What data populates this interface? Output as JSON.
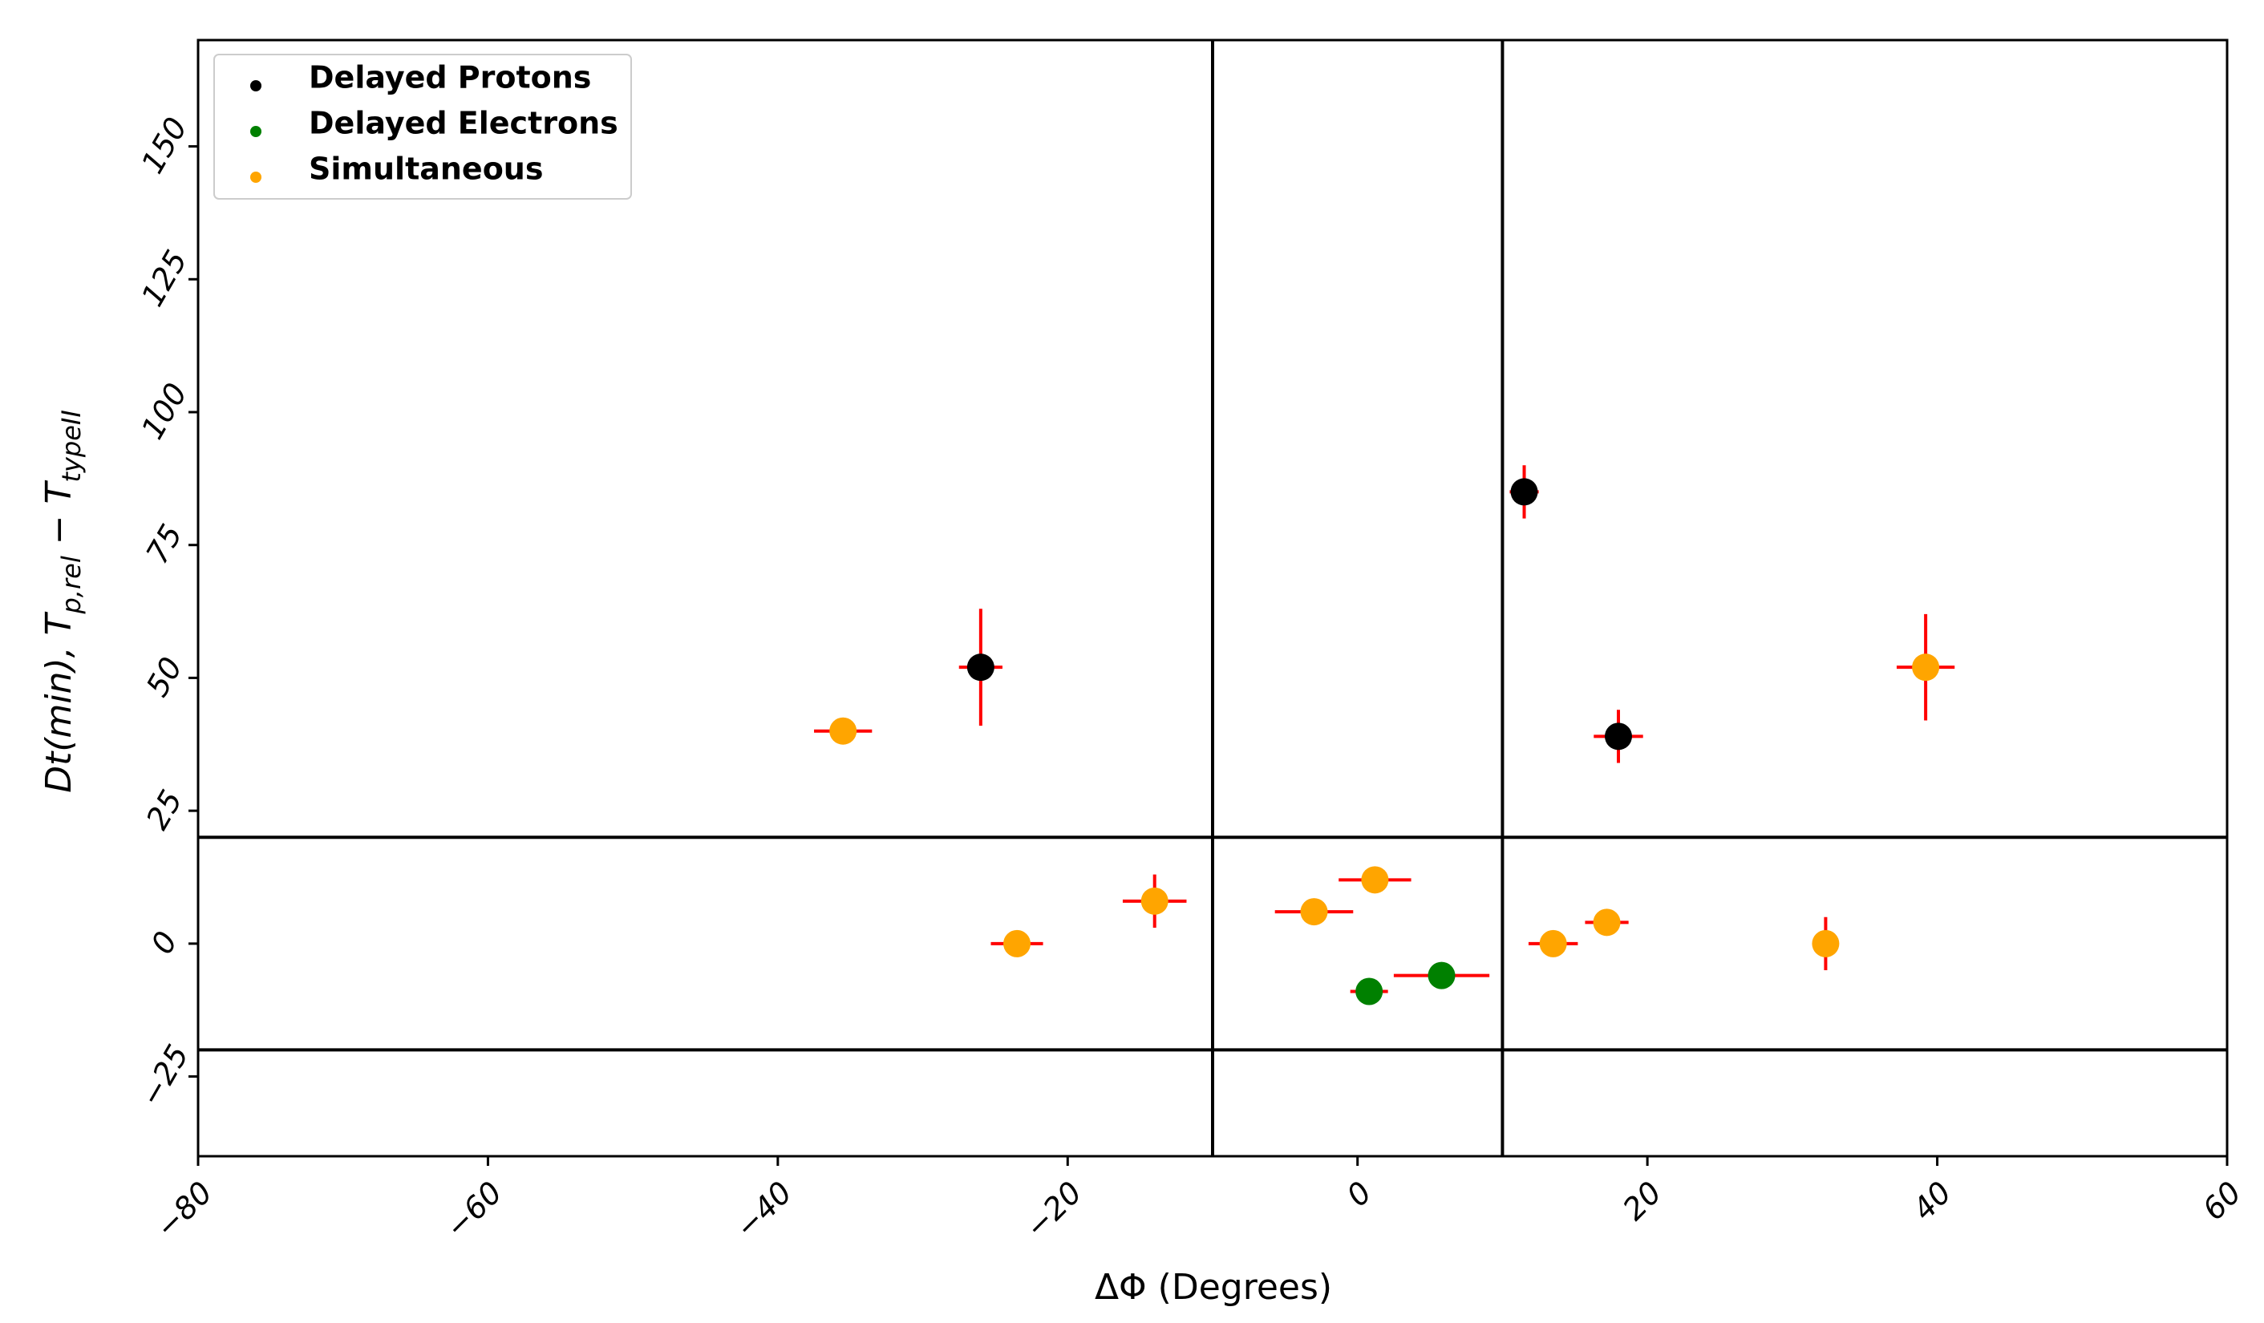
{
  "chart_data": {
    "type": "scatter",
    "title": "",
    "xlabel": "ΔΦ (Degrees)",
    "ylabel_parts": {
      "main": "Dt(min), T",
      "sub1": "p,rel",
      "mid": " − T",
      "sub2": "typeII"
    },
    "xlim": [
      -80,
      60
    ],
    "ylim": [
      -40,
      170
    ],
    "xticks": [
      -80,
      -60,
      -40,
      -20,
      0,
      20,
      40,
      60
    ],
    "yticks": [
      -25,
      0,
      25,
      50,
      75,
      100,
      125,
      150
    ],
    "xtick_labels": [
      "−80",
      "−60",
      "−40",
      "−20",
      "0",
      "20",
      "40",
      "60"
    ],
    "ytick_labels": [
      "−25",
      "0",
      "25",
      "50",
      "75",
      "100",
      "125",
      "150"
    ],
    "grid": false,
    "legend_position": "top-left",
    "reference_lines": {
      "vertical": [
        -10,
        10
      ],
      "horizontal": [
        20,
        -20
      ]
    },
    "colors": {
      "delayed_protons": "#000000",
      "delayed_electrons": "#008000",
      "simultaneous": "#ffa500",
      "error_bars": "#ff0000",
      "reference_lines": "#000000"
    },
    "series": [
      {
        "name": "Delayed Protons",
        "color_key": "delayed_protons",
        "points": [
          {
            "x": -26,
            "y": 52,
            "xerr": 1.5,
            "yerr": 11
          },
          {
            "x": 11.5,
            "y": 85,
            "xerr": 1.0,
            "yerr": 5
          },
          {
            "x": 18,
            "y": 39,
            "xerr": 1.7,
            "yerr": 5
          }
        ]
      },
      {
        "name": "Delayed Electrons",
        "color_key": "delayed_electrons",
        "points": [
          {
            "x": 0.8,
            "y": -9,
            "xerr": 1.3,
            "yerr": 0
          },
          {
            "x": 5.8,
            "y": -6,
            "xerr": 3.3,
            "yerr": 0
          }
        ]
      },
      {
        "name": "Simultaneous",
        "color_key": "simultaneous",
        "points": [
          {
            "x": -35.5,
            "y": 40,
            "xerr": 2.0,
            "yerr": 0
          },
          {
            "x": -23.5,
            "y": 0,
            "xerr": 1.8,
            "yerr": 2
          },
          {
            "x": -14,
            "y": 8,
            "xerr": 2.2,
            "yerr": 5
          },
          {
            "x": -3,
            "y": 6,
            "xerr": 2.7,
            "yerr": 0
          },
          {
            "x": 1.2,
            "y": 12,
            "xerr": 2.5,
            "yerr": 0
          },
          {
            "x": 13.5,
            "y": 0,
            "xerr": 1.7,
            "yerr": 0
          },
          {
            "x": 17.2,
            "y": 4,
            "xerr": 1.5,
            "yerr": 1
          },
          {
            "x": 32.3,
            "y": 0,
            "xerr": 0,
            "yerr": 5
          },
          {
            "x": 39.2,
            "y": 52,
            "xerr": 2.0,
            "yerr": 10
          }
        ]
      }
    ]
  }
}
